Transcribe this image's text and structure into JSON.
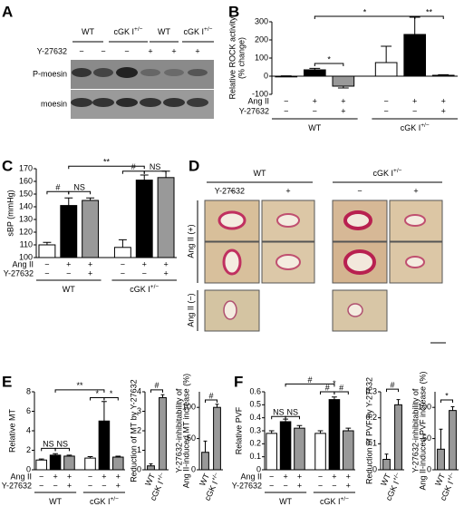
{
  "panel_letters": [
    "A",
    "B",
    "C",
    "D",
    "E",
    "F"
  ],
  "blot": {
    "groups": [
      {
        "text": "WT"
      },
      {
        "text": "cGK I",
        "sup": "+/−"
      },
      {
        "text": "WT"
      },
      {
        "text": "cGK I",
        "sup": "+/−"
      }
    ],
    "treatment": "Y-27632",
    "signs": [
      "−",
      "−",
      "−",
      "+",
      "+",
      "+"
    ],
    "bands": [
      "P-moesin",
      "moesin"
    ]
  },
  "histology": {
    "genotypes": [
      {
        "text": "WT"
      },
      {
        "text": "cGK I",
        "sup": "+/−"
      }
    ],
    "treatment": "Y-27632",
    "signs": [
      "−",
      "+",
      "−",
      "+"
    ],
    "rows": [
      "Ang II (+)",
      "Ang II (−)"
    ]
  },
  "chart_data": [
    {
      "type": "bar",
      "ylabel": [
        "Relative ROCK activity",
        "(% change)"
      ],
      "ylim": [
        -100,
        300
      ],
      "yticks": [
        -100,
        0,
        100,
        200,
        300
      ],
      "values": [
        0,
        35,
        -55,
        75,
        230,
        5
      ],
      "errors": [
        2,
        8,
        10,
        90,
        95,
        3
      ],
      "colors": [
        "#ffffff",
        "#000000",
        "#999999",
        "#ffffff",
        "#000000",
        "#999999"
      ],
      "rows": [
        {
          "label": "Ang II",
          "signs": [
            "−",
            "+",
            "+",
            "−",
            "+",
            "+"
          ]
        },
        {
          "label": "Y-27632",
          "signs": [
            "−",
            "−",
            "+",
            "−",
            "−",
            "+"
          ]
        }
      ],
      "groups": [
        {
          "text": "WT"
        },
        {
          "text": "cGK I",
          "sup": "+/−"
        }
      ],
      "annotations": [
        "*",
        "*",
        "**"
      ]
    },
    {
      "type": "bar",
      "ylabel": [
        "sBP (mmHg)"
      ],
      "ylim": [
        100,
        170
      ],
      "yticks": [
        100,
        110,
        120,
        130,
        140,
        150,
        160,
        170
      ],
      "values": [
        110,
        141,
        145,
        108,
        161,
        163
      ],
      "errors": [
        2,
        6,
        2,
        6,
        4,
        5
      ],
      "colors": [
        "#ffffff",
        "#000000",
        "#999999",
        "#ffffff",
        "#000000",
        "#999999"
      ],
      "rows": [
        {
          "label": "Ang II",
          "signs": [
            "−",
            "+",
            "+",
            "−",
            "+",
            "+"
          ]
        },
        {
          "label": "Y-27632",
          "signs": [
            "−",
            "−",
            "+",
            "−",
            "−",
            "+"
          ]
        }
      ],
      "groups": [
        {
          "text": "WT"
        },
        {
          "text": "cGK I",
          "sup": "+/−"
        }
      ],
      "annotations": [
        "#",
        "NS",
        "**",
        "#",
        "NS"
      ]
    },
    {
      "type": "bar",
      "ylabel": [
        "Relative MT"
      ],
      "ylim": [
        0,
        8
      ],
      "yticks": [
        0,
        2,
        4,
        6,
        8
      ],
      "values": [
        1.0,
        1.5,
        1.4,
        1.2,
        5.0,
        1.3
      ],
      "errors": [
        0.1,
        0.15,
        0.1,
        0.15,
        2.0,
        0.1
      ],
      "colors": [
        "#ffffff",
        "#000000",
        "#999999",
        "#ffffff",
        "#000000",
        "#999999"
      ],
      "rows": [
        {
          "label": "Ang II",
          "signs": [
            "−",
            "+",
            "+",
            "−",
            "+",
            "+"
          ]
        },
        {
          "label": "Y-27632",
          "signs": [
            "−",
            "−",
            "+",
            "−",
            "−",
            "+"
          ]
        }
      ],
      "groups": [
        {
          "text": "WT"
        },
        {
          "text": "cGK I",
          "sup": "+/−"
        }
      ],
      "annotations": [
        "NS",
        "NS",
        "**",
        "*",
        "*"
      ]
    },
    {
      "type": "bar",
      "ylabel": [
        "Reduction of MT by Y-27632"
      ],
      "ylim": [
        0,
        4
      ],
      "yticks": [
        0,
        1,
        2,
        3,
        4
      ],
      "values": [
        0.2,
        3.7
      ],
      "errors": [
        0.1,
        0.15
      ],
      "colors": [
        "#999999",
        "#999999"
      ],
      "categories": [
        {
          "text": "WT"
        },
        {
          "text": "cGK I",
          "sup": "+/−"
        }
      ],
      "annotations": [
        "#"
      ]
    },
    {
      "type": "bar",
      "ylabel": [
        "Y-27632-inhibitability of",
        "Ang II-induced MT increase (%)"
      ],
      "ylim": [
        0,
        125
      ],
      "yticks": [
        0,
        50,
        100
      ],
      "values": [
        28,
        100
      ],
      "errors": [
        18,
        5
      ],
      "colors": [
        "#999999",
        "#999999"
      ],
      "categories": [
        {
          "text": "WT"
        },
        {
          "text": "cGK I",
          "sup": "+/−"
        }
      ],
      "annotations": [
        "#"
      ]
    },
    {
      "type": "bar",
      "ylabel": [
        "Relative PVF"
      ],
      "ylim": [
        0,
        0.6
      ],
      "yticks": [
        0,
        0.1,
        0.2,
        0.3,
        0.4,
        0.5,
        0.6
      ],
      "values": [
        0.28,
        0.37,
        0.32,
        0.28,
        0.54,
        0.3
      ],
      "errors": [
        0.02,
        0.02,
        0.02,
        0.02,
        0.02,
        0.02
      ],
      "colors": [
        "#ffffff",
        "#000000",
        "#999999",
        "#ffffff",
        "#000000",
        "#999999"
      ],
      "rows": [
        {
          "label": "Ang II",
          "signs": [
            "−",
            "+",
            "+",
            "−",
            "+",
            "+"
          ]
        },
        {
          "label": "Y-27632",
          "signs": [
            "−",
            "−",
            "+",
            "−",
            "−",
            "+"
          ]
        }
      ],
      "groups": [
        {
          "text": "WT"
        },
        {
          "text": "cGK I",
          "sup": "+/−"
        }
      ],
      "annotations": [
        "NS",
        "NS",
        "#",
        "#",
        "*",
        "#"
      ]
    },
    {
      "type": "bar",
      "ylabel": [
        "Reduction of PVF by Y-27632"
      ],
      "ylim": [
        0,
        0.3
      ],
      "yticks": [
        0,
        0.1,
        0.2,
        0.3
      ],
      "values": [
        0.04,
        0.25
      ],
      "errors": [
        0.02,
        0.02
      ],
      "colors": [
        "#999999",
        "#999999"
      ],
      "categories": [
        {
          "text": "WT"
        },
        {
          "text": "cGK I",
          "sup": "+/−"
        }
      ],
      "annotations": [
        "#"
      ]
    },
    {
      "type": "bar",
      "ylabel": [
        "Y-27632-inhibitability of",
        "Ang II-induced PVF increase (%)"
      ],
      "ylim": [
        0,
        125
      ],
      "yticks": [
        0,
        50,
        100
      ],
      "values": [
        33,
        95
      ],
      "errors": [
        32,
        6
      ],
      "colors": [
        "#999999",
        "#999999"
      ],
      "categories": [
        {
          "text": "WT"
        },
        {
          "text": "cGK I",
          "sup": "+/−"
        }
      ],
      "annotations": [
        "*"
      ]
    }
  ]
}
